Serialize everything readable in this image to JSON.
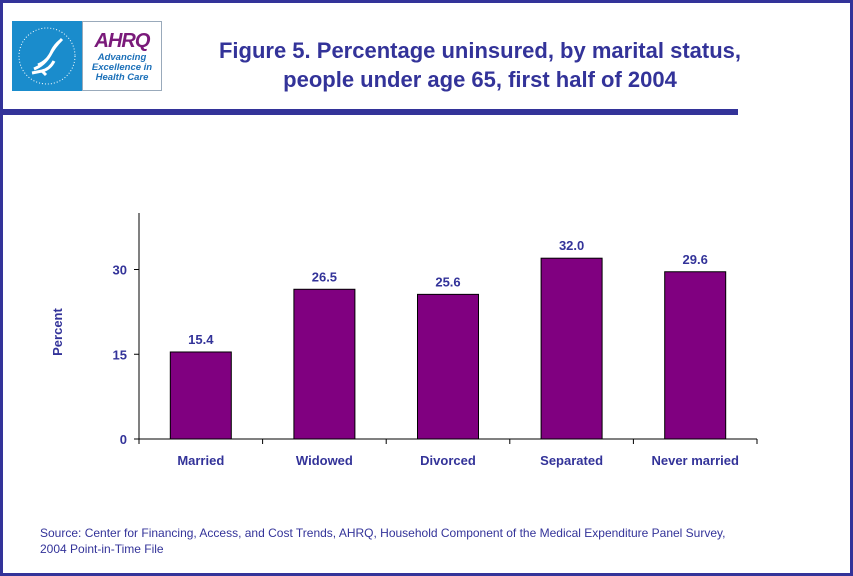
{
  "logo": {
    "agency": "AHRQ",
    "tagline": "Advancing Excellence in Health Care"
  },
  "title_line1": "Figure 5. Percentage uninsured, by marital status,",
  "title_line2": "people under age 65, first half of 2004",
  "source_line1": "Source: Center for Financing, Access, and Cost Trends, AHRQ, Household Component of the Medical Expenditure Panel Survey,",
  "source_line2": "2004 Point-in-Time File",
  "colors": {
    "bar": "#800080",
    "text": "#333399",
    "frame": "#333399"
  },
  "chart_data": {
    "type": "bar",
    "title": "Figure 5. Percentage uninsured, by marital status, people under age 65, first half of 2004",
    "xlabel": "",
    "ylabel": "Percent",
    "categories": [
      "Married",
      "Widowed",
      "Divorced",
      "Separated",
      "Never married"
    ],
    "values": [
      15.4,
      26.5,
      25.6,
      32.0,
      29.6
    ],
    "data_labels": [
      "15.4",
      "26.5",
      "25.6",
      "32.0",
      "29.6"
    ],
    "ylim": [
      0,
      40
    ],
    "yticks": [
      0,
      15,
      30
    ],
    "grid": false
  }
}
